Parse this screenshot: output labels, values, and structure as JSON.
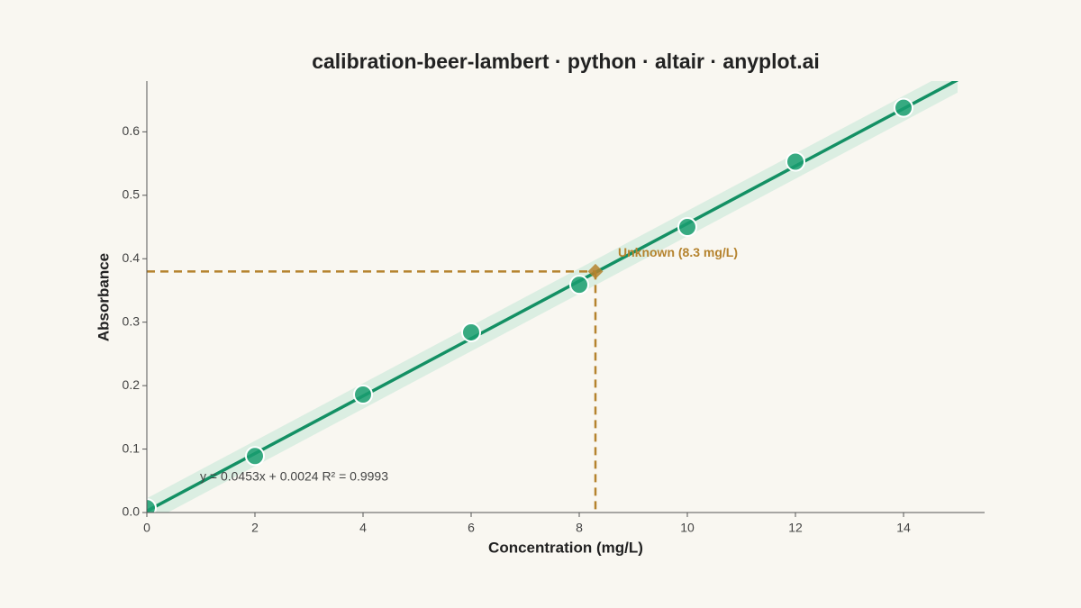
{
  "chart_data": {
    "type": "scatter",
    "title": "calibration-beer-lambert · python · altair · anyplot.ai",
    "x_label": "Concentration (mg/L)",
    "y_label": "Absorbance",
    "x": [
      0,
      2,
      4,
      6,
      8,
      10,
      12,
      14
    ],
    "values": [
      0.007,
      0.089,
      0.186,
      0.284,
      0.359,
      0.45,
      0.553,
      0.638
    ],
    "color": "#1a9e70",
    "fit": {
      "x": [
        0,
        15
      ],
      "values": [
        0.0024,
        0.6819
      ],
      "lower": [
        -0.0176,
        0.6619
      ],
      "upper": [
        0.0224,
        0.7019
      ],
      "color": "#139064",
      "band_color": "#d3ebde"
    },
    "unknown": {
      "x": 8.3,
      "value": 0.38,
      "color": "#b5832e",
      "label": "Unknown (8.3 mg/L)"
    },
    "equation": "y = 0.0453x + 0.0024 R² = 0.9993",
    "xlim": [
      0,
      15.5
    ],
    "ylim": [
      0,
      0.68
    ],
    "xticks": [
      0,
      2,
      4,
      6,
      8,
      10,
      12,
      14
    ],
    "yticks": [
      {
        "value": 0,
        "label": "0.0"
      },
      0.1,
      0.2,
      0.3,
      0.4,
      0.5,
      0.6
    ],
    "grid": false
  }
}
